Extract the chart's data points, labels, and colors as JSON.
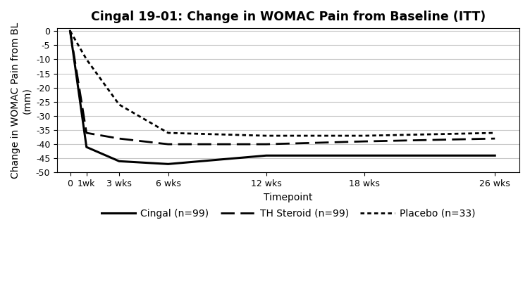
{
  "title": "Cingal 19-01: Change in WOMAC Pain from Baseline (ITT)",
  "xlabel": "Timepoint",
  "ylabel": "Change in WOMAC Pain from BL\n(mm)",
  "ylim": [
    -50,
    1
  ],
  "yticks": [
    0,
    -5,
    -10,
    -15,
    -20,
    -25,
    -30,
    -35,
    -40,
    -45,
    -50
  ],
  "x_weeks": [
    0,
    1,
    3,
    6,
    12,
    18,
    26
  ],
  "xtick_labels": [
    "0",
    "1wk",
    "3 wks",
    "6 wks",
    "12 wks",
    "18 wks",
    "26 wks"
  ],
  "cingal": {
    "label": "Cingal (n=99)",
    "y": [
      0,
      -41,
      -46,
      -47,
      -44,
      -44,
      -44
    ],
    "linestyle": "solid",
    "linewidth": 2.2,
    "color": "#000000"
  },
  "th_steroid": {
    "label": "TH Steroid (n=99)",
    "y": [
      0,
      -36,
      -38,
      -40,
      -40,
      -39,
      -38
    ],
    "linestyle": "dashed",
    "linewidth": 2.0,
    "color": "#000000"
  },
  "placebo": {
    "label": "Placebo (n=33)",
    "y": [
      0,
      -10,
      -26,
      -36,
      -37,
      -37,
      -36
    ],
    "linestyle": "dotted",
    "linewidth": 2.0,
    "color": "#000000"
  },
  "background_color": "#ffffff",
  "plot_bg_color": "#ffffff",
  "grid_color": "#c8c8c8",
  "title_fontsize": 12.5,
  "label_fontsize": 10,
  "tick_fontsize": 9,
  "legend_fontsize": 10
}
